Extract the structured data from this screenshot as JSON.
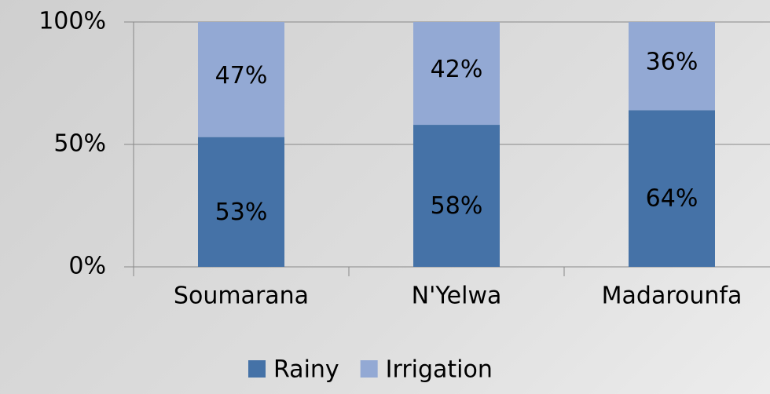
{
  "chart_data": {
    "type": "stacked_bar",
    "categories": [
      "Soumarana",
      "N'Yelwa",
      "Madarounfa"
    ],
    "series": [
      {
        "name": "Rainy",
        "color": "#4572a7",
        "values": [
          53,
          58,
          64
        ],
        "value_labels": [
          "53%",
          "58%",
          "64%"
        ]
      },
      {
        "name": "Irrigation",
        "color": "#93a9d4",
        "values": [
          47,
          42,
          36
        ],
        "value_labels": [
          "47%",
          "42%",
          "36%"
        ]
      }
    ],
    "ylim": [
      0,
      100
    ],
    "yticks": [
      {
        "value": 0,
        "label": "0%"
      },
      {
        "value": 50,
        "label": "50%"
      },
      {
        "value": 100,
        "label": "100%"
      }
    ],
    "grid": true,
    "legend": "bottom"
  }
}
